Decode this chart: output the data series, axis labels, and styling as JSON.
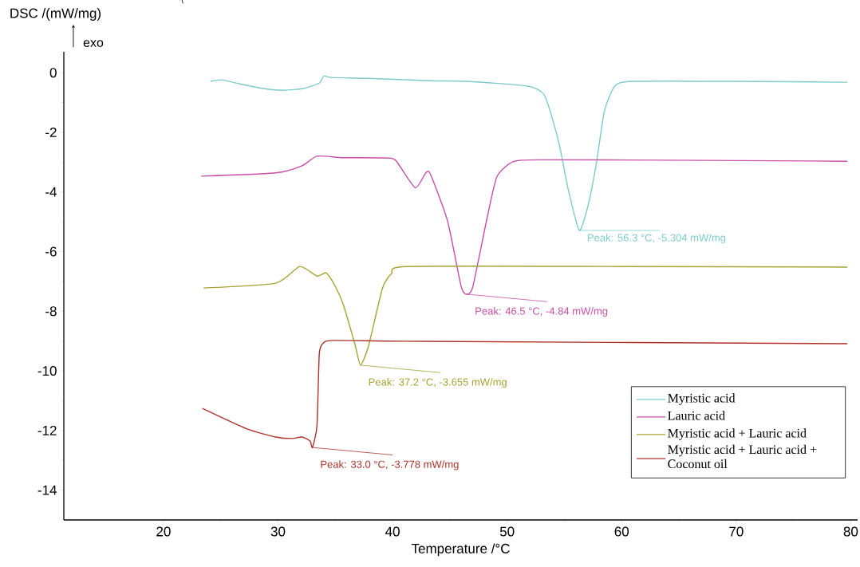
{
  "chart_data": {
    "type": "line",
    "xlabel": "Temperature /°C",
    "ylabel": "DSC /(mW/mg)",
    "xlim": [
      11.3,
      80.6
    ],
    "ylim": [
      -15,
      0.7
    ],
    "xticks": [
      20,
      30,
      40,
      50,
      60,
      70,
      80
    ],
    "yticks": [
      -14,
      -12,
      -10,
      -8,
      -6,
      -4,
      -2,
      0
    ],
    "legend": "bottom right",
    "series": [
      {
        "name": "Myristic acid",
        "color": "#7ecbcb",
        "x": [
          24.1,
          25.1,
          26.6,
          28.7,
          30.5,
          32.2,
          33.6,
          34.0,
          34.6,
          37.8,
          43.3,
          46.5,
          51.8,
          53.2,
          53.9,
          54.6,
          55.3,
          56.3,
          57.1,
          57.8,
          58.5,
          59.4,
          60.9,
          69.8,
          79.7
        ],
        "values": [
          -0.29,
          -0.24,
          -0.37,
          -0.53,
          -0.59,
          -0.53,
          -0.35,
          -0.11,
          -0.16,
          -0.19,
          -0.27,
          -0.29,
          -0.45,
          -0.72,
          -1.47,
          -2.49,
          -3.85,
          -5.29,
          -4.41,
          -3.02,
          -1.28,
          -0.45,
          -0.29,
          -0.29,
          -0.32
        ]
      },
      {
        "name": "Lauric acid",
        "color": "#c94fa8",
        "x": [
          23.3,
          29.8,
          32.1,
          33.4,
          35.7,
          39.9,
          40.6,
          42.0,
          42.9,
          43.3,
          44.8,
          46.0,
          46.5,
          47.0,
          48.2,
          49.1,
          50.5,
          53.0,
          67.4,
          79.7
        ],
        "values": [
          -3.47,
          -3.36,
          -3.12,
          -2.8,
          -2.85,
          -2.87,
          -3.12,
          -3.86,
          -3.36,
          -3.4,
          -4.97,
          -7.19,
          -7.43,
          -7.19,
          -4.97,
          -3.5,
          -2.99,
          -2.92,
          -2.94,
          -2.97
        ]
      },
      {
        "name": "Myristic acid + Lauric acid",
        "color": "#a6a334",
        "x": [
          23.5,
          29.8,
          31.9,
          33.4,
          34.2,
          34.9,
          35.7,
          36.7,
          37.2,
          37.9,
          39.1,
          39.9,
          41.3,
          60.0,
          79.7
        ],
        "values": [
          -7.22,
          -7.06,
          -6.5,
          -6.82,
          -6.71,
          -7.09,
          -7.78,
          -9.09,
          -9.81,
          -9.17,
          -7.25,
          -6.74,
          -6.5,
          -6.5,
          -6.52
        ]
      },
      {
        "name": "Myristic acid + Lauric acid + Coconut oil",
        "color": "#b0312a",
        "x": [
          23.4,
          27.3,
          29.8,
          31.2,
          32.1,
          32.8,
          33.0,
          33.4,
          33.6,
          33.9,
          34.8,
          42.7,
          79.7
        ],
        "values": [
          -11.26,
          -11.95,
          -12.22,
          -12.27,
          -12.22,
          -12.35,
          -12.57,
          -11.84,
          -9.44,
          -9.09,
          -8.98,
          -9.01,
          -9.09
        ]
      }
    ],
    "annotations": [
      {
        "text": "Peak: 56.3 °C, -5.304 mW/mg",
        "x": 56.3,
        "y": -5.29
      },
      {
        "text": "Peak: 46.5 °C, -4.84 mW/mg",
        "x": 46.5,
        "y": -7.43
      },
      {
        "text": "Peak: 37.2 °C, -3.655 mW/mg",
        "x": 37.2,
        "y": -9.81
      },
      {
        "text": "Peak: 33.0 °C, -3.778 mW/mg",
        "x": 33.0,
        "y": -12.57
      },
      "exo"
    ]
  }
}
